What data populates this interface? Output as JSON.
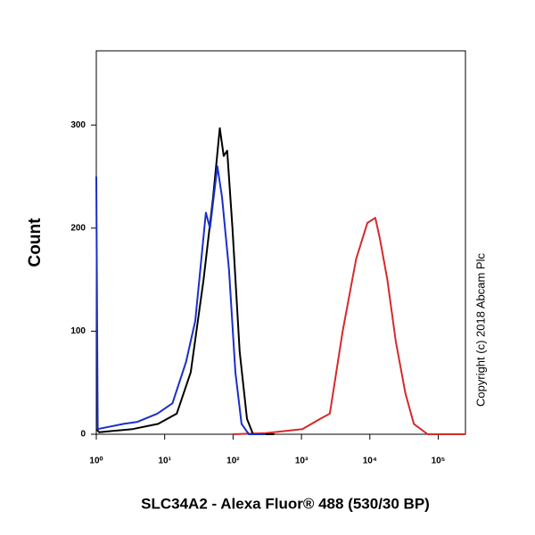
{
  "chart_data": {
    "type": "line",
    "x_label": "SLC34A2 - Alexa Fluor® 488 (530/30 BP)",
    "y_label": "Count",
    "annotation": "Copyright (c) 2018 Abcam Plc",
    "x_scale": "log",
    "xlim": [
      1,
      250000
    ],
    "ylim": [
      0,
      372
    ],
    "xticks": [
      {
        "value": 1,
        "label": "10⁰"
      },
      {
        "value": 10,
        "label": "10¹"
      },
      {
        "value": 100,
        "label": "10²"
      },
      {
        "value": 1000,
        "label": "10³"
      },
      {
        "value": 10000,
        "label": "10⁴"
      },
      {
        "value": 100000,
        "label": "10⁵"
      }
    ],
    "yticks": [
      0,
      100,
      200,
      300
    ],
    "series": [
      {
        "color": "#d42a2a",
        "x": [
          100,
          300,
          1030,
          1880,
          2600,
          4000,
          6300,
          9200,
          12000,
          14000,
          18000,
          24000,
          33000,
          44000,
          70000,
          250000
        ],
        "values": [
          0,
          1,
          5,
          15,
          20,
          100,
          170,
          205,
          210,
          190,
          150,
          90,
          40,
          10,
          0,
          0
        ]
      },
      {
        "color": "#000000",
        "x": [
          1,
          1.1,
          3.4,
          8,
          15,
          24,
          37,
          51,
          64,
          73,
          82,
          98,
          125,
          160,
          196,
          400
        ],
        "values": [
          5,
          2,
          5,
          10,
          20,
          60,
          150,
          230,
          297,
          270,
          275,
          200,
          80,
          15,
          0,
          0
        ]
      },
      {
        "color": "#1a2fc8",
        "x": [
          1,
          1.05,
          2.5,
          4,
          7.8,
          13,
          20.5,
          28,
          40,
          46,
          59,
          69,
          87,
          108,
          133,
          170,
          300
        ],
        "values": [
          250,
          5,
          10,
          12,
          20,
          30,
          70,
          110,
          215,
          200,
          260,
          230,
          160,
          60,
          10,
          0,
          0
        ]
      }
    ]
  }
}
